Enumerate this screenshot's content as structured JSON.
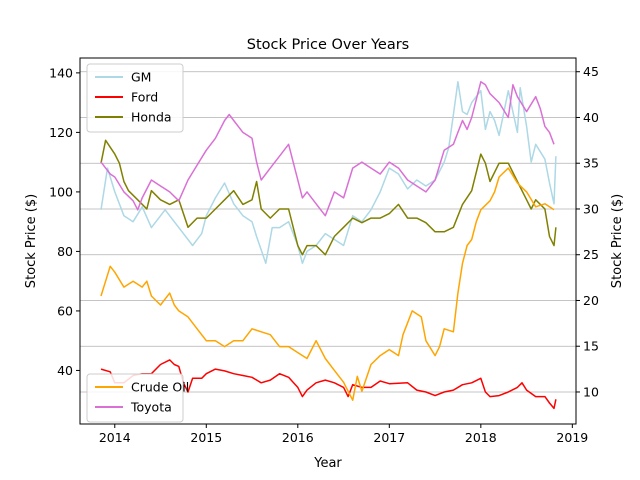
{
  "chart_data": {
    "type": "line",
    "title": "Stock Price Over Years",
    "xlabel": "Year",
    "ylabel": "Stock Price ($)",
    "ylabel_right": "Stock Price ($)",
    "xlim": [
      2013.62,
      2019.04
    ],
    "ylim": [
      22,
      145
    ],
    "ylim_right": [
      6.5,
      46.5
    ],
    "x_ticks": [
      2014,
      2015,
      2016,
      2017,
      2018,
      2019
    ],
    "y_ticks": [
      40,
      60,
      80,
      100,
      120,
      140
    ],
    "y_ticks_right": [
      10,
      15,
      20,
      25,
      30,
      35,
      40,
      45
    ],
    "grid": "horizontal lines at right-axis ticks",
    "legend_left_top": {
      "placement": "upper-left",
      "entries": [
        "GM",
        "Ford",
        "Honda"
      ]
    },
    "legend_left_bottom": {
      "placement": "lower-left",
      "entries": [
        "Crude Oil",
        "Toyota"
      ]
    },
    "series": [
      {
        "name": "GM",
        "axis": "left",
        "color": "#add8e6",
        "points": [
          [
            2013.85,
            94
          ],
          [
            2013.92,
            108
          ],
          [
            2014.0,
            100
          ],
          [
            2014.1,
            92
          ],
          [
            2014.2,
            90
          ],
          [
            2014.3,
            95
          ],
          [
            2014.4,
            88
          ],
          [
            2014.55,
            94
          ],
          [
            2014.7,
            88
          ],
          [
            2014.85,
            82
          ],
          [
            2014.95,
            86
          ],
          [
            2015.0,
            92
          ],
          [
            2015.1,
            98
          ],
          [
            2015.2,
            103
          ],
          [
            2015.3,
            96
          ],
          [
            2015.4,
            92
          ],
          [
            2015.5,
            90
          ],
          [
            2015.55,
            85
          ],
          [
            2015.65,
            76
          ],
          [
            2015.72,
            88
          ],
          [
            2015.8,
            88
          ],
          [
            2015.9,
            90
          ],
          [
            2016.0,
            82
          ],
          [
            2016.05,
            76
          ],
          [
            2016.1,
            80
          ],
          [
            2016.2,
            82
          ],
          [
            2016.3,
            86
          ],
          [
            2016.4,
            84
          ],
          [
            2016.5,
            82
          ],
          [
            2016.6,
            92
          ],
          [
            2016.7,
            90
          ],
          [
            2016.8,
            94
          ],
          [
            2016.9,
            100
          ],
          [
            2017.0,
            108
          ],
          [
            2017.1,
            106
          ],
          [
            2017.2,
            101
          ],
          [
            2017.3,
            104
          ],
          [
            2017.4,
            102
          ],
          [
            2017.5,
            104
          ],
          [
            2017.6,
            110
          ],
          [
            2017.65,
            115
          ],
          [
            2017.7,
            126
          ],
          [
            2017.75,
            137
          ],
          [
            2017.8,
            127
          ],
          [
            2017.85,
            126
          ],
          [
            2017.9,
            130
          ],
          [
            2018.0,
            134
          ],
          [
            2018.05,
            121
          ],
          [
            2018.1,
            127
          ],
          [
            2018.15,
            124
          ],
          [
            2018.2,
            119
          ],
          [
            2018.3,
            134
          ],
          [
            2018.4,
            120
          ],
          [
            2018.43,
            135
          ],
          [
            2018.5,
            122
          ],
          [
            2018.55,
            110
          ],
          [
            2018.6,
            116
          ],
          [
            2018.7,
            111
          ],
          [
            2018.75,
            103
          ],
          [
            2018.8,
            96
          ],
          [
            2018.82,
            112
          ]
        ]
      },
      {
        "name": "Ford",
        "axis": "right",
        "color": "#ff0000",
        "points": [
          [
            2013.85,
            12.5
          ],
          [
            2013.95,
            12.2
          ],
          [
            2014.0,
            11.0
          ],
          [
            2014.1,
            11.0
          ],
          [
            2014.2,
            11.8
          ],
          [
            2014.3,
            12.0
          ],
          [
            2014.4,
            12.0
          ],
          [
            2014.5,
            13.0
          ],
          [
            2014.6,
            13.5
          ],
          [
            2014.65,
            13.0
          ],
          [
            2014.7,
            12.8
          ],
          [
            2014.75,
            11.0
          ],
          [
            2014.8,
            10.0
          ],
          [
            2014.85,
            11.5
          ],
          [
            2014.95,
            11.5
          ],
          [
            2015.0,
            12.0
          ],
          [
            2015.1,
            12.5
          ],
          [
            2015.2,
            12.3
          ],
          [
            2015.3,
            12.0
          ],
          [
            2015.4,
            11.8
          ],
          [
            2015.5,
            11.6
          ],
          [
            2015.6,
            11.0
          ],
          [
            2015.7,
            11.3
          ],
          [
            2015.8,
            12.0
          ],
          [
            2015.9,
            11.6
          ],
          [
            2016.0,
            10.5
          ],
          [
            2016.05,
            9.5
          ],
          [
            2016.1,
            10.2
          ],
          [
            2016.2,
            11.0
          ],
          [
            2016.3,
            11.3
          ],
          [
            2016.4,
            11.0
          ],
          [
            2016.5,
            10.5
          ],
          [
            2016.55,
            9.5
          ],
          [
            2016.6,
            10.8
          ],
          [
            2016.7,
            10.5
          ],
          [
            2016.8,
            10.5
          ],
          [
            2016.9,
            11.2
          ],
          [
            2017.0,
            10.9
          ],
          [
            2017.2,
            11.0
          ],
          [
            2017.3,
            10.2
          ],
          [
            2017.4,
            10.0
          ],
          [
            2017.5,
            9.6
          ],
          [
            2017.6,
            10.0
          ],
          [
            2017.7,
            10.2
          ],
          [
            2017.8,
            10.8
          ],
          [
            2017.9,
            11.0
          ],
          [
            2018.0,
            11.5
          ],
          [
            2018.05,
            10.0
          ],
          [
            2018.1,
            9.5
          ],
          [
            2018.2,
            9.6
          ],
          [
            2018.3,
            10.0
          ],
          [
            2018.4,
            10.5
          ],
          [
            2018.45,
            11.0
          ],
          [
            2018.5,
            10.2
          ],
          [
            2018.6,
            9.5
          ],
          [
            2018.7,
            9.5
          ],
          [
            2018.75,
            8.8
          ],
          [
            2018.8,
            8.2
          ],
          [
            2018.82,
            9.2
          ]
        ]
      },
      {
        "name": "Honda",
        "axis": "right",
        "color": "#808000",
        "points": [
          [
            2013.85,
            35
          ],
          [
            2013.9,
            37.5
          ],
          [
            2014.0,
            36
          ],
          [
            2014.05,
            35
          ],
          [
            2014.1,
            33
          ],
          [
            2014.15,
            32
          ],
          [
            2014.25,
            31
          ],
          [
            2014.35,
            30
          ],
          [
            2014.4,
            32
          ],
          [
            2014.5,
            31
          ],
          [
            2014.6,
            30.5
          ],
          [
            2014.7,
            31
          ],
          [
            2014.8,
            28
          ],
          [
            2014.9,
            29
          ],
          [
            2015.0,
            29
          ],
          [
            2015.1,
            30
          ],
          [
            2015.2,
            31
          ],
          [
            2015.3,
            32
          ],
          [
            2015.4,
            30.5
          ],
          [
            2015.5,
            31
          ],
          [
            2015.55,
            33
          ],
          [
            2015.6,
            30
          ],
          [
            2015.7,
            29
          ],
          [
            2015.8,
            30
          ],
          [
            2015.9,
            30
          ],
          [
            2016.0,
            26
          ],
          [
            2016.05,
            25
          ],
          [
            2016.1,
            26
          ],
          [
            2016.2,
            26
          ],
          [
            2016.3,
            25
          ],
          [
            2016.4,
            27
          ],
          [
            2016.5,
            28
          ],
          [
            2016.6,
            29
          ],
          [
            2016.7,
            28.5
          ],
          [
            2016.8,
            29
          ],
          [
            2016.9,
            29
          ],
          [
            2017.0,
            29.5
          ],
          [
            2017.1,
            30.5
          ],
          [
            2017.2,
            29
          ],
          [
            2017.3,
            29
          ],
          [
            2017.4,
            28.5
          ],
          [
            2017.5,
            27.5
          ],
          [
            2017.6,
            27.5
          ],
          [
            2017.7,
            28
          ],
          [
            2017.8,
            30.5
          ],
          [
            2017.9,
            32
          ],
          [
            2018.0,
            36
          ],
          [
            2018.05,
            35
          ],
          [
            2018.1,
            33
          ],
          [
            2018.2,
            35
          ],
          [
            2018.3,
            35
          ],
          [
            2018.4,
            33
          ],
          [
            2018.5,
            31
          ],
          [
            2018.55,
            30
          ],
          [
            2018.6,
            31
          ],
          [
            2018.7,
            30
          ],
          [
            2018.75,
            27
          ],
          [
            2018.8,
            26
          ],
          [
            2018.82,
            28
          ]
        ]
      },
      {
        "name": "Crude Oil",
        "axis": "left",
        "color": "#ffa500",
        "points": [
          [
            2013.85,
            65
          ],
          [
            2013.9,
            70
          ],
          [
            2013.95,
            75
          ],
          [
            2014.0,
            73
          ],
          [
            2014.1,
            68
          ],
          [
            2014.2,
            70
          ],
          [
            2014.3,
            68
          ],
          [
            2014.35,
            70
          ],
          [
            2014.4,
            65
          ],
          [
            2014.5,
            62
          ],
          [
            2014.6,
            66
          ],
          [
            2014.65,
            62
          ],
          [
            2014.7,
            60
          ],
          [
            2014.8,
            58
          ],
          [
            2014.9,
            54
          ],
          [
            2015.0,
            50
          ],
          [
            2015.1,
            50
          ],
          [
            2015.2,
            48
          ],
          [
            2015.3,
            50
          ],
          [
            2015.4,
            50
          ],
          [
            2015.5,
            54
          ],
          [
            2015.6,
            53
          ],
          [
            2015.7,
            52
          ],
          [
            2015.8,
            48
          ],
          [
            2015.9,
            48
          ],
          [
            2016.0,
            46
          ],
          [
            2016.1,
            44
          ],
          [
            2016.2,
            50
          ],
          [
            2016.3,
            44
          ],
          [
            2016.4,
            40
          ],
          [
            2016.5,
            36
          ],
          [
            2016.6,
            30
          ],
          [
            2016.65,
            38
          ],
          [
            2016.7,
            33
          ],
          [
            2016.8,
            42
          ],
          [
            2016.9,
            45
          ],
          [
            2017.0,
            47
          ],
          [
            2017.1,
            45
          ],
          [
            2017.15,
            52
          ],
          [
            2017.2,
            56
          ],
          [
            2017.25,
            60
          ],
          [
            2017.35,
            58
          ],
          [
            2017.4,
            50
          ],
          [
            2017.5,
            45
          ],
          [
            2017.55,
            48
          ],
          [
            2017.6,
            54
          ],
          [
            2017.7,
            53
          ],
          [
            2017.75,
            66
          ],
          [
            2017.8,
            76
          ],
          [
            2017.85,
            82
          ],
          [
            2017.9,
            84
          ],
          [
            2017.95,
            90
          ],
          [
            2018.0,
            94
          ],
          [
            2018.1,
            97
          ],
          [
            2018.15,
            100
          ],
          [
            2018.2,
            105
          ],
          [
            2018.3,
            108
          ],
          [
            2018.4,
            103
          ],
          [
            2018.5,
            100
          ],
          [
            2018.6,
            95
          ],
          [
            2018.7,
            96
          ],
          [
            2018.8,
            94
          ]
        ]
      },
      {
        "name": "Toyota",
        "axis": "left",
        "color": "#da70d6",
        "points": [
          [
            2013.85,
            110
          ],
          [
            2013.95,
            106
          ],
          [
            2014.0,
            105
          ],
          [
            2014.1,
            100
          ],
          [
            2014.2,
            97
          ],
          [
            2014.25,
            94
          ],
          [
            2014.3,
            98
          ],
          [
            2014.4,
            104
          ],
          [
            2014.5,
            102
          ],
          [
            2014.6,
            100
          ],
          [
            2014.7,
            97
          ],
          [
            2014.8,
            104
          ],
          [
            2014.9,
            109
          ],
          [
            2015.0,
            114
          ],
          [
            2015.1,
            118
          ],
          [
            2015.2,
            124
          ],
          [
            2015.25,
            126
          ],
          [
            2015.3,
            124
          ],
          [
            2015.4,
            120
          ],
          [
            2015.5,
            118
          ],
          [
            2015.55,
            110
          ],
          [
            2015.6,
            104
          ],
          [
            2015.7,
            108
          ],
          [
            2015.8,
            112
          ],
          [
            2015.9,
            116
          ],
          [
            2016.0,
            104
          ],
          [
            2016.05,
            98
          ],
          [
            2016.1,
            100
          ],
          [
            2016.2,
            96
          ],
          [
            2016.3,
            92
          ],
          [
            2016.4,
            100
          ],
          [
            2016.5,
            98
          ],
          [
            2016.6,
            108
          ],
          [
            2016.7,
            110
          ],
          [
            2016.8,
            108
          ],
          [
            2016.9,
            106
          ],
          [
            2017.0,
            110
          ],
          [
            2017.1,
            108
          ],
          [
            2017.2,
            104
          ],
          [
            2017.3,
            102
          ],
          [
            2017.4,
            100
          ],
          [
            2017.5,
            104
          ],
          [
            2017.6,
            114
          ],
          [
            2017.7,
            116
          ],
          [
            2017.75,
            120
          ],
          [
            2017.8,
            124
          ],
          [
            2017.85,
            121
          ],
          [
            2017.9,
            125
          ],
          [
            2018.0,
            137
          ],
          [
            2018.05,
            136
          ],
          [
            2018.1,
            133
          ],
          [
            2018.2,
            130
          ],
          [
            2018.3,
            125
          ],
          [
            2018.35,
            136
          ],
          [
            2018.4,
            132
          ],
          [
            2018.5,
            127
          ],
          [
            2018.6,
            132
          ],
          [
            2018.65,
            128
          ],
          [
            2018.7,
            122
          ],
          [
            2018.75,
            120
          ],
          [
            2018.8,
            116
          ]
        ]
      }
    ]
  }
}
